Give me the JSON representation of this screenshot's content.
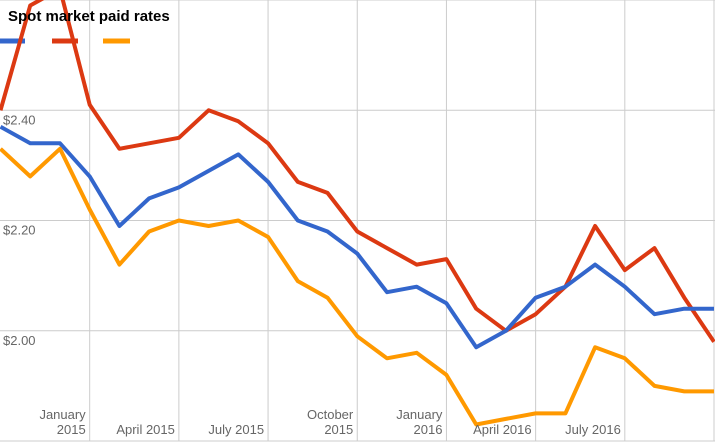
{
  "title": "Spot market paid rates",
  "colors": {
    "background": "#ffffff",
    "grid": "#cccccc",
    "axis_text": "#666666",
    "title_text": "#000000",
    "series_blue": "#3366cc",
    "series_red": "#dc3912",
    "series_orange": "#ff9900"
  },
  "legend": {
    "items": [
      {
        "name": "blue-series-swatch",
        "color": "#3366cc",
        "label": ""
      },
      {
        "name": "red-series-swatch",
        "color": "#dc3912",
        "label": ""
      },
      {
        "name": "orange-series-swatch",
        "color": "#ff9900",
        "label": ""
      }
    ]
  },
  "chart_data": {
    "type": "line",
    "title": "Spot market paid rates",
    "xlabel": "",
    "ylabel": "",
    "ylim": [
      1.8,
      2.6
    ],
    "grid": true,
    "legend_position": "top-left, swatches only (labels blank)",
    "x": [
      "October 2014",
      "November 2014",
      "December 2014",
      "January 2015",
      "February 2015",
      "March 2015",
      "April 2015",
      "May 2015",
      "June 2015",
      "July 2015",
      "August 2015",
      "September 2015",
      "October 2015",
      "November 2015",
      "December 2015",
      "January 2016",
      "February 2016",
      "March 2016",
      "April 2016",
      "May 2016",
      "June 2016",
      "July 2016",
      "August 2016",
      "September 2016",
      "October 2016"
    ],
    "series": [
      {
        "name": "red-series",
        "color": "#dc3912",
        "values": [
          2.4,
          2.59,
          2.62,
          2.41,
          2.33,
          2.34,
          2.35,
          2.4,
          2.38,
          2.34,
          2.27,
          2.25,
          2.18,
          2.15,
          2.12,
          2.13,
          2.04,
          2.0,
          2.03,
          2.08,
          2.19,
          2.11,
          2.15,
          2.06,
          1.98
        ]
      },
      {
        "name": "blue-series",
        "color": "#3366cc",
        "values": [
          2.37,
          2.34,
          2.34,
          2.28,
          2.19,
          2.24,
          2.26,
          2.29,
          2.32,
          2.27,
          2.2,
          2.18,
          2.14,
          2.07,
          2.08,
          2.05,
          1.97,
          2.0,
          2.06,
          2.08,
          2.12,
          2.08,
          2.03,
          2.04,
          2.04
        ]
      },
      {
        "name": "orange-series",
        "color": "#ff9900",
        "values": [
          2.33,
          2.28,
          2.33,
          2.22,
          2.12,
          2.18,
          2.2,
          2.19,
          2.2,
          2.17,
          2.09,
          2.06,
          1.99,
          1.95,
          1.96,
          1.92,
          1.83,
          1.84,
          1.85,
          1.85,
          1.97,
          1.95,
          1.9,
          1.89,
          1.89
        ]
      }
    ],
    "x_ticks": [
      {
        "index": 3,
        "lines": [
          "January",
          "2015"
        ]
      },
      {
        "index": 6,
        "lines": [
          "April 2015"
        ]
      },
      {
        "index": 9,
        "lines": [
          "July 2015"
        ]
      },
      {
        "index": 12,
        "lines": [
          "October",
          "2015"
        ]
      },
      {
        "index": 15,
        "lines": [
          "January",
          "2016"
        ]
      },
      {
        "index": 18,
        "lines": [
          "April 2016"
        ]
      },
      {
        "index": 21,
        "lines": [
          "July 2016"
        ]
      },
      {
        "index": 24,
        "lines": []
      }
    ],
    "y_ticks": [
      {
        "value": 2.6,
        "label": ""
      },
      {
        "value": 2.4,
        "label": "$2.40"
      },
      {
        "value": 2.2,
        "label": "$2.20"
      },
      {
        "value": 2.0,
        "label": "$2.00"
      },
      {
        "value": 1.8,
        "label": ""
      }
    ]
  }
}
